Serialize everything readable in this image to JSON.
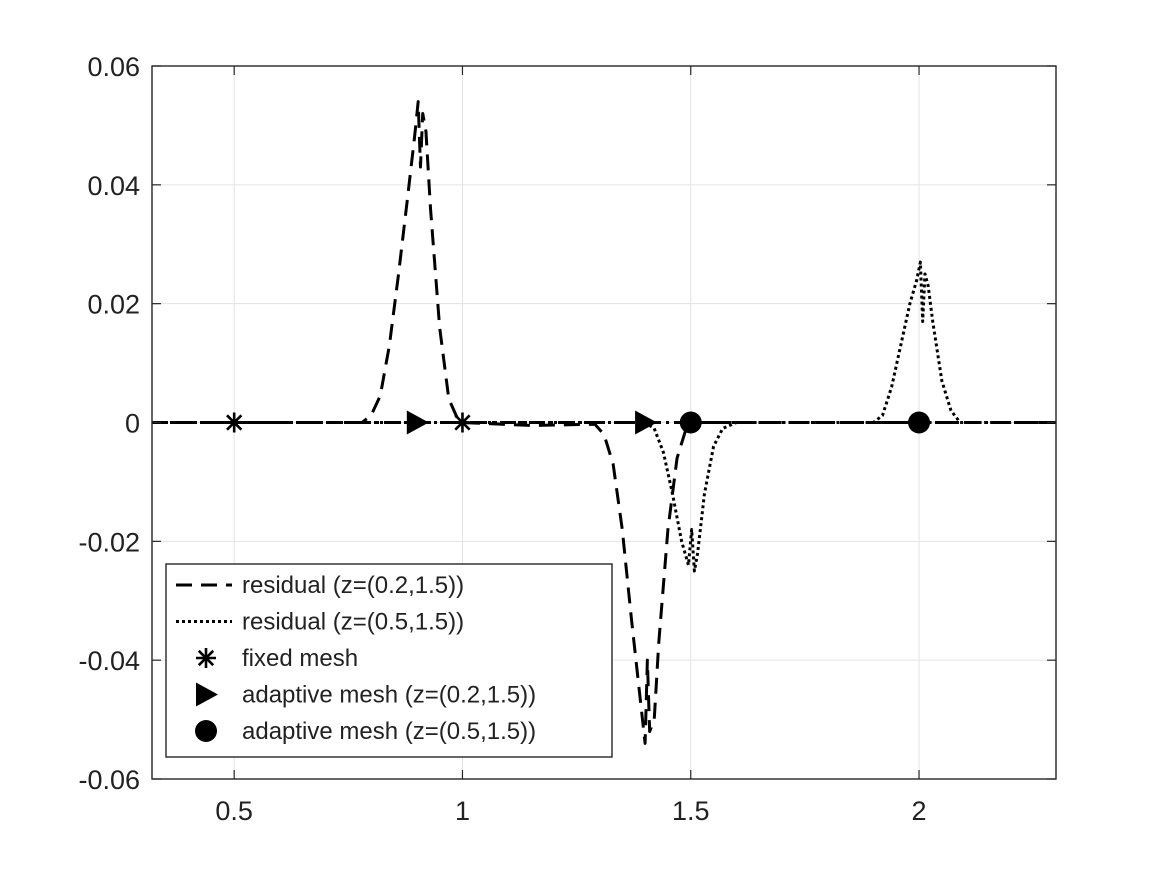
{
  "chart_data": {
    "type": "line",
    "title": "",
    "xlabel": "",
    "ylabel": "",
    "xlim": [
      0.32,
      2.3
    ],
    "ylim": [
      -0.06,
      0.06
    ],
    "grid": true,
    "legend_position": "bottom-left",
    "x_ticks": [
      0.5,
      1,
      1.5,
      2
    ],
    "x_tick_labels": [
      "0.5",
      "1",
      "1.5",
      "2"
    ],
    "y_ticks": [
      0.06,
      0.04,
      0.02,
      0,
      -0.02,
      -0.04,
      -0.06
    ],
    "y_tick_labels": [
      "0.06",
      "0.04",
      "0.02",
      "0",
      "-0.02",
      "-0.04",
      "-0.06"
    ],
    "series": [
      {
        "name": "residual (z=(0.2,1.5))",
        "style": "dashed",
        "color": "#000000",
        "points": [
          [
            0.32,
            0
          ],
          [
            0.78,
            0
          ],
          [
            0.8,
            0.0012
          ],
          [
            0.82,
            0.0045
          ],
          [
            0.84,
            0.013
          ],
          [
            0.86,
            0.025
          ],
          [
            0.88,
            0.038
          ],
          [
            0.895,
            0.048
          ],
          [
            0.903,
            0.054
          ],
          [
            0.908,
            0.043
          ],
          [
            0.913,
            0.052
          ],
          [
            0.92,
            0.049
          ],
          [
            0.93,
            0.036
          ],
          [
            0.95,
            0.016
          ],
          [
            0.97,
            0.004
          ],
          [
            0.99,
            0.0005
          ],
          [
            1.0,
            0
          ],
          [
            1.15,
            -0.0005
          ],
          [
            1.29,
            -0.0003
          ],
          [
            1.31,
            -0.002
          ],
          [
            1.33,
            -0.007
          ],
          [
            1.35,
            -0.018
          ],
          [
            1.37,
            -0.033
          ],
          [
            1.39,
            -0.047
          ],
          [
            1.4,
            -0.054
          ],
          [
            1.405,
            -0.04
          ],
          [
            1.41,
            -0.052
          ],
          [
            1.42,
            -0.05
          ],
          [
            1.43,
            -0.037
          ],
          [
            1.45,
            -0.018
          ],
          [
            1.47,
            -0.006
          ],
          [
            1.49,
            -0.001
          ],
          [
            1.5,
            0
          ],
          [
            2.3,
            0
          ]
        ]
      },
      {
        "name": "residual (z=(0.5,1.5))",
        "style": "dotted",
        "color": "#000000",
        "points": [
          [
            0.32,
            0
          ],
          [
            1.4,
            0
          ],
          [
            1.42,
            -0.001
          ],
          [
            1.44,
            -0.005
          ],
          [
            1.46,
            -0.012
          ],
          [
            1.48,
            -0.02
          ],
          [
            1.495,
            -0.024
          ],
          [
            1.502,
            -0.018
          ],
          [
            1.508,
            -0.025
          ],
          [
            1.515,
            -0.022
          ],
          [
            1.53,
            -0.012
          ],
          [
            1.55,
            -0.004
          ],
          [
            1.57,
            -0.001
          ],
          [
            1.6,
            0
          ],
          [
            1.9,
            0
          ],
          [
            1.92,
            0.0012
          ],
          [
            1.94,
            0.006
          ],
          [
            1.96,
            0.013
          ],
          [
            1.98,
            0.02
          ],
          [
            1.995,
            0.024
          ],
          [
            2.003,
            0.027
          ],
          [
            2.008,
            0.017
          ],
          [
            2.013,
            0.025
          ],
          [
            2.02,
            0.023
          ],
          [
            2.03,
            0.017
          ],
          [
            2.05,
            0.007
          ],
          [
            2.07,
            0.002
          ],
          [
            2.09,
            0
          ],
          [
            2.3,
            0
          ]
        ]
      },
      {
        "name": "fixed mesh",
        "marker": "asterisk",
        "color": "#000000",
        "points": [
          [
            0.5,
            0
          ],
          [
            1.0,
            0
          ]
        ]
      },
      {
        "name": "adaptive mesh (z=(0.2,1.5))",
        "marker": "triangle-right",
        "color": "#000000",
        "points": [
          [
            0.9,
            0
          ],
          [
            1.4,
            0
          ]
        ]
      },
      {
        "name": "adaptive mesh (z=(0.5,1.5))",
        "marker": "circle",
        "color": "#000000",
        "points": [
          [
            1.5,
            0
          ],
          [
            2.0,
            0
          ]
        ]
      }
    ]
  }
}
